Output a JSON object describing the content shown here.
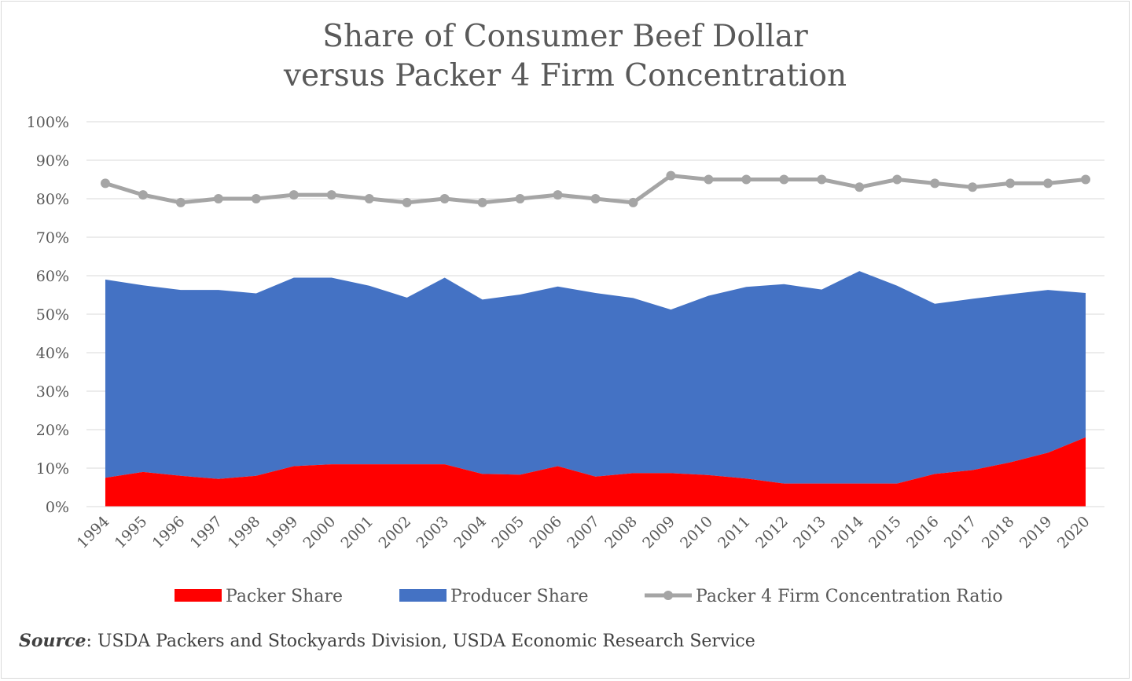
{
  "chart_data": {
    "type": "area",
    "title_lines": [
      "Share of Consumer Beef Dollar",
      "versus Packer 4 Firm Concentration"
    ],
    "x": [
      "1994",
      "1995",
      "1996",
      "1997",
      "1998",
      "1999",
      "2000",
      "2001",
      "2002",
      "2003",
      "2004",
      "2005",
      "2006",
      "2007",
      "2008",
      "2009",
      "2010",
      "2011",
      "2012",
      "2013",
      "2014",
      "2015",
      "2016",
      "2017",
      "2018",
      "2019",
      "2020"
    ],
    "y_ticks": [
      "0%",
      "10%",
      "20%",
      "30%",
      "40%",
      "50%",
      "60%",
      "70%",
      "80%",
      "90%",
      "100%"
    ],
    "ylim": [
      0,
      100
    ],
    "grid": true,
    "legend_position": "bottom",
    "series": [
      {
        "name": "Packer Share",
        "kind": "stacked-area",
        "color": "#ff0000",
        "values": [
          7.5,
          9,
          8,
          7.2,
          8,
          10.5,
          11,
          11,
          11,
          11,
          8.5,
          8.3,
          10.5,
          7.8,
          8.7,
          8.7,
          8.2,
          7.3,
          6,
          6,
          6,
          6,
          8.5,
          9.5,
          11.5,
          14,
          18
        ]
      },
      {
        "name": "Producer Share",
        "kind": "stacked-area",
        "color": "#4472c4",
        "values": [
          51.5,
          48.5,
          48.3,
          49.1,
          47.4,
          49,
          48.5,
          46.4,
          43.3,
          48.5,
          45.3,
          46.8,
          46.7,
          47.7,
          45.5,
          42.5,
          46.6,
          49.8,
          51.8,
          50.4,
          55.2,
          51.4,
          44.2,
          44.5,
          43.7,
          42.3,
          37.5
        ]
      },
      {
        "name": "Packer 4 Firm Concentration Ratio",
        "kind": "line",
        "color": "#a5a5a5",
        "values": [
          84,
          81,
          79,
          80,
          80,
          81,
          81,
          80,
          79,
          80,
          79,
          80,
          81,
          80,
          79,
          86,
          85,
          85,
          85,
          85,
          83,
          85,
          84,
          83,
          84,
          84,
          85
        ]
      }
    ]
  },
  "source": {
    "label": "Source",
    "text": ": USDA Packers and Stockyards Division, USDA Economic Research Service"
  }
}
